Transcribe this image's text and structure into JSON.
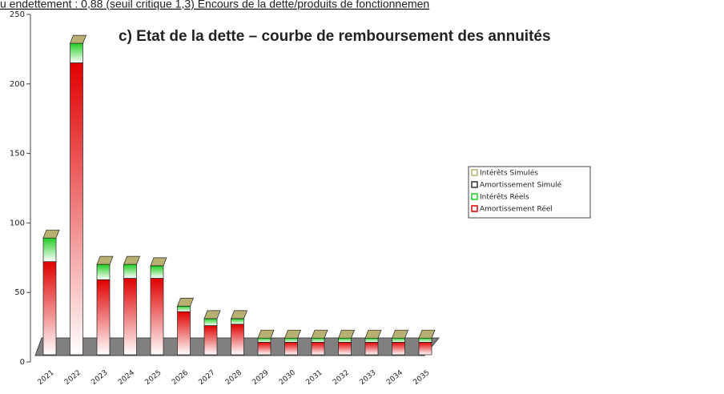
{
  "page_text": "u endettement : 0,88 (seuil critique 1,3) Encours de la dette/produits de fonctionnemen",
  "chart_data": {
    "type": "bar",
    "stacked": true,
    "title": "c) Etat de la dette – courbe de remboursement des annuités",
    "categories": [
      "2021",
      "2022",
      "2023",
      "2024",
      "2025",
      "2026",
      "2027",
      "2028",
      "2029",
      "2030",
      "2031",
      "2032",
      "2033",
      "2034",
      "2035"
    ],
    "series": [
      {
        "name": "Amortissement Réel",
        "color": "#e00000",
        "values": [
          67,
          210,
          54,
          55,
          55,
          31,
          21,
          22,
          9,
          9,
          9,
          9,
          9,
          9,
          9
        ]
      },
      {
        "name": "Intérêts Réels",
        "color": "#22cc22",
        "values": [
          17,
          14,
          11,
          10,
          9,
          4,
          5,
          4,
          3,
          3,
          3,
          3,
          3,
          3,
          3
        ]
      },
      {
        "name": "Amortissement Simulé",
        "color": "#333333",
        "values": [
          0,
          0,
          0,
          0,
          0,
          0,
          0,
          0,
          0,
          0,
          0,
          0,
          0,
          0,
          0
        ]
      },
      {
        "name": "Intérêts Simulés",
        "color": "#b8b070",
        "values": [
          0,
          0,
          0,
          0,
          0,
          0,
          0,
          0,
          0,
          0,
          0,
          0,
          0,
          0,
          0
        ]
      }
    ],
    "ylim": [
      0,
      250
    ],
    "yticks": [
      0,
      50,
      100,
      150,
      200,
      250
    ],
    "legend": "right"
  }
}
